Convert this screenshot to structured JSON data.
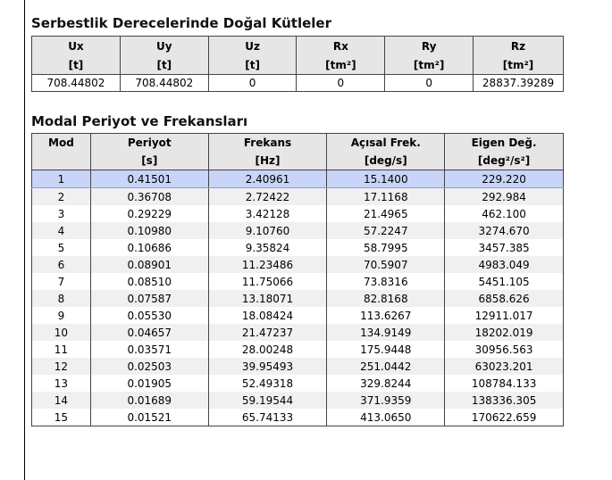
{
  "section1": {
    "title": "Serbestlik Derecelerinde Doğal Kütleler",
    "headers": [
      "Ux",
      "Uy",
      "Uz",
      "Rx",
      "Ry",
      "Rz"
    ],
    "units": [
      "[t]",
      "[t]",
      "[t]",
      "[tm²]",
      "[tm²]",
      "[tm²]"
    ],
    "values": [
      "708.44802",
      "708.44802",
      "0",
      "0",
      "0",
      "28837.39289"
    ]
  },
  "section2": {
    "title": "Modal Periyot ve Frekansları",
    "headers": [
      "Mod",
      "Periyot",
      "Frekans",
      "Açısal Frek.",
      "Eigen Değ."
    ],
    "units": [
      "",
      "[s]",
      "[Hz]",
      "[deg/s]",
      "[deg²/s²]"
    ],
    "selected_row": 1,
    "rows": [
      [
        "1",
        "0.41501",
        "2.40961",
        "15.1400",
        "229.220"
      ],
      [
        "2",
        "0.36708",
        "2.72422",
        "17.1168",
        "292.984"
      ],
      [
        "3",
        "0.29229",
        "3.42128",
        "21.4965",
        "462.100"
      ],
      [
        "4",
        "0.10980",
        "9.10760",
        "57.2247",
        "3274.670"
      ],
      [
        "5",
        "0.10686",
        "9.35824",
        "58.7995",
        "3457.385"
      ],
      [
        "6",
        "0.08901",
        "11.23486",
        "70.5907",
        "4983.049"
      ],
      [
        "7",
        "0.08510",
        "11.75066",
        "73.8316",
        "5451.105"
      ],
      [
        "8",
        "0.07587",
        "13.18071",
        "82.8168",
        "6858.626"
      ],
      [
        "9",
        "0.05530",
        "18.08424",
        "113.6267",
        "12911.017"
      ],
      [
        "10",
        "0.04657",
        "21.47237",
        "134.9149",
        "18202.019"
      ],
      [
        "11",
        "0.03571",
        "28.00248",
        "175.9448",
        "30956.563"
      ],
      [
        "12",
        "0.02503",
        "39.95493",
        "251.0442",
        "63023.201"
      ],
      [
        "13",
        "0.01905",
        "52.49318",
        "329.8244",
        "108784.133"
      ],
      [
        "14",
        "0.01689",
        "59.19544",
        "371.9359",
        "138336.305"
      ],
      [
        "15",
        "0.01521",
        "65.74133",
        "413.0650",
        "170622.659"
      ]
    ]
  }
}
